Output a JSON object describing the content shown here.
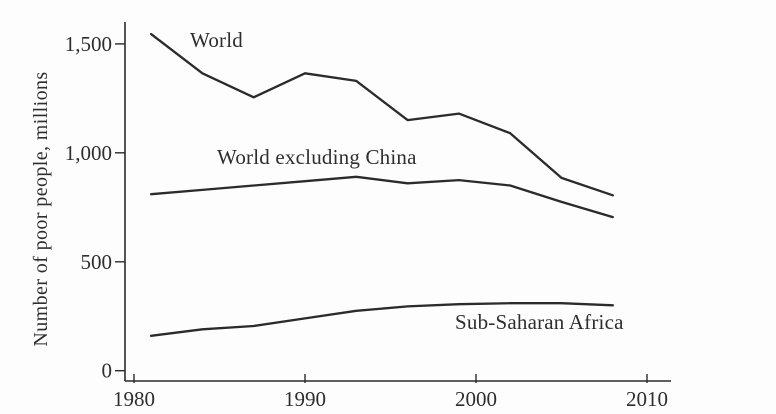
{
  "figure": {
    "background": "#fdfdfd",
    "line_color": "#2b2b2b",
    "text_color": "#2e2e2e"
  },
  "chart_data": {
    "type": "line",
    "title": "",
    "xlabel": "",
    "ylabel": "Number of poor people, millions",
    "x": [
      1981,
      1984,
      1987,
      1990,
      1993,
      1996,
      1999,
      2002,
      2005,
      2008
    ],
    "series": [
      {
        "name": "World",
        "values": [
          1545,
          1365,
          1255,
          1365,
          1330,
          1150,
          1180,
          1090,
          885,
          805
        ]
      },
      {
        "name": "World excluding China",
        "values": [
          810,
          830,
          850,
          870,
          890,
          860,
          875,
          850,
          775,
          705
        ]
      },
      {
        "name": "Sub-Saharan Africa",
        "values": [
          160,
          190,
          205,
          240,
          275,
          295,
          305,
          310,
          310,
          300
        ]
      }
    ],
    "xticks": [
      1980,
      1990,
      2000,
      2010
    ],
    "xtick_labels": [
      "1980",
      "1990",
      "2000",
      "2010"
    ],
    "yticks": [
      0,
      500,
      1000,
      1500
    ],
    "ytick_labels": [
      "0",
      "500",
      "1,000",
      "1,500"
    ],
    "xlim": [
      1979.5,
      2011.4
    ],
    "ylim": [
      0,
      1600
    ],
    "grid": false,
    "legend": "inline-labels"
  }
}
